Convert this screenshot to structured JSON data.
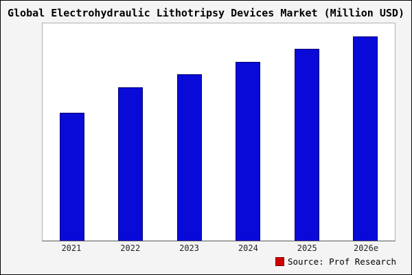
{
  "title": "Global Electrohydraulic Lithotripsy Devices Market (Million USD)",
  "source": {
    "label": "Source: Prof Research",
    "icon": "prof-research-logo"
  },
  "colors": {
    "bar": "#0a0ad8",
    "bar_border": "#000070",
    "background": "#f4f4f4",
    "plot_background": "#ffffff"
  },
  "chart_data": {
    "type": "bar",
    "categories": [
      "2021",
      "2022",
      "2023",
      "2024",
      "2025",
      "2026e"
    ],
    "values": [
      100,
      120,
      130,
      140,
      150,
      160
    ],
    "title": "Global Electrohydraulic Lithotripsy Devices Market (Million USD)",
    "xlabel": "",
    "ylabel": "",
    "ylim": [
      0,
      170
    ],
    "grid": false,
    "legend": false,
    "y_axis_ticks_visible": false,
    "bar_color": "#0a0ad8",
    "source": "Source: Prof Research"
  }
}
